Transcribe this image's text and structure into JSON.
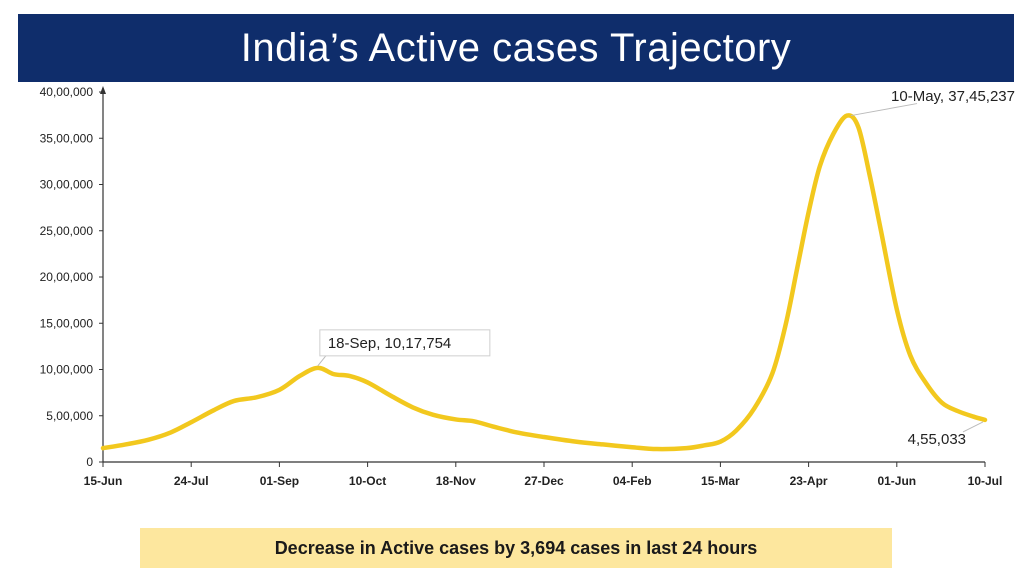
{
  "title": "India’s Active cases Trajectory",
  "footer": "Decrease in Active cases by 3,694 cases in last 24 hours",
  "colors": {
    "banner": "#0f2d6b",
    "line": "#f2c81e",
    "footer_bg": "#fde79e"
  },
  "chart_data": {
    "type": "line",
    "title": "India’s Active cases Trajectory",
    "xlabel": "",
    "ylabel": "",
    "ylim": [
      0,
      4000000
    ],
    "grid": false,
    "x_ticks": [
      "15-Jun",
      "24-Jul",
      "01-Sep",
      "10-Oct",
      "18-Nov",
      "27-Dec",
      "04-Feb",
      "15-Mar",
      "23-Apr",
      "01-Jun",
      "10-Jul"
    ],
    "y_ticks": [
      {
        "value": 0,
        "label": "0"
      },
      {
        "value": 500000,
        "label": "5,00,000"
      },
      {
        "value": 1000000,
        "label": "10,00,000"
      },
      {
        "value": 1500000,
        "label": "15,00,000"
      },
      {
        "value": 2000000,
        "label": "20,00,000"
      },
      {
        "value": 2500000,
        "label": "25,00,000"
      },
      {
        "value": 3000000,
        "label": "30,00,000"
      },
      {
        "value": 3500000,
        "label": "35,00,000"
      },
      {
        "value": 4000000,
        "label": "40,00,000"
      }
    ],
    "x_range": [
      "2020-06-15",
      "2021-07-10"
    ],
    "series": [
      {
        "points": [
          [
            "2020-06-15",
            150000
          ],
          [
            "2020-06-25",
            190000
          ],
          [
            "2020-07-05",
            240000
          ],
          [
            "2020-07-15",
            320000
          ],
          [
            "2020-07-24",
            430000
          ],
          [
            "2020-08-03",
            560000
          ],
          [
            "2020-08-12",
            660000
          ],
          [
            "2020-08-22",
            700000
          ],
          [
            "2020-09-01",
            780000
          ],
          [
            "2020-09-10",
            930000
          ],
          [
            "2020-09-18",
            1017754
          ],
          [
            "2020-09-25",
            950000
          ],
          [
            "2020-10-02",
            930000
          ],
          [
            "2020-10-10",
            860000
          ],
          [
            "2020-10-20",
            720000
          ],
          [
            "2020-10-30",
            590000
          ],
          [
            "2020-11-08",
            510000
          ],
          [
            "2020-11-18",
            460000
          ],
          [
            "2020-11-26",
            440000
          ],
          [
            "2020-12-05",
            380000
          ],
          [
            "2020-12-15",
            320000
          ],
          [
            "2020-12-27",
            270000
          ],
          [
            "2021-01-10",
            220000
          ],
          [
            "2021-01-22",
            190000
          ],
          [
            "2021-02-04",
            160000
          ],
          [
            "2021-02-15",
            140000
          ],
          [
            "2021-02-28",
            150000
          ],
          [
            "2021-03-08",
            180000
          ],
          [
            "2021-03-15",
            220000
          ],
          [
            "2021-03-22",
            340000
          ],
          [
            "2021-03-30",
            580000
          ],
          [
            "2021-04-07",
            960000
          ],
          [
            "2021-04-13",
            1500000
          ],
          [
            "2021-04-18",
            2100000
          ],
          [
            "2021-04-23",
            2700000
          ],
          [
            "2021-04-28",
            3200000
          ],
          [
            "2021-05-04",
            3550000
          ],
          [
            "2021-05-10",
            3745237
          ],
          [
            "2021-05-15",
            3620000
          ],
          [
            "2021-05-20",
            3100000
          ],
          [
            "2021-05-25",
            2500000
          ],
          [
            "2021-06-01",
            1650000
          ],
          [
            "2021-06-07",
            1150000
          ],
          [
            "2021-06-14",
            850000
          ],
          [
            "2021-06-21",
            640000
          ],
          [
            "2021-06-28",
            550000
          ],
          [
            "2021-07-05",
            490000
          ],
          [
            "2021-07-10",
            455033
          ]
        ]
      }
    ],
    "annotations": [
      {
        "label": "18-Sep, 10,17,754",
        "x": "2020-09-18",
        "y": 1017754,
        "boxed": true
      },
      {
        "label": "10-May, 37,45,237",
        "x": "2021-05-10",
        "y": 3745237,
        "boxed": false
      },
      {
        "label": "4,55,033",
        "x": "2021-07-10",
        "y": 455033,
        "boxed": false
      }
    ]
  }
}
